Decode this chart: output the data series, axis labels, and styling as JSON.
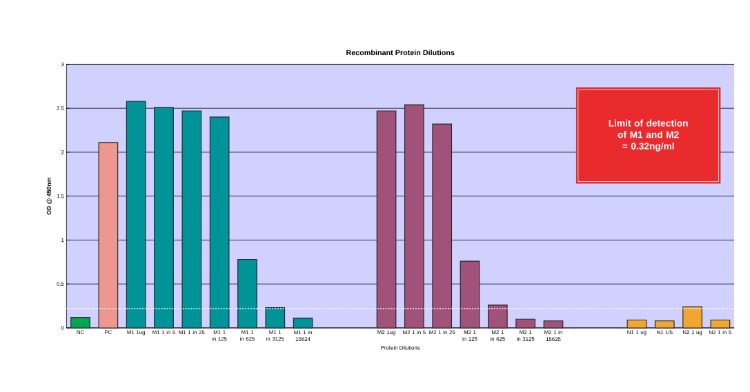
{
  "chart_data": {
    "type": "bar",
    "title": "Recombinant Protein Dilutions",
    "xlabel": "Protein Dilutions",
    "ylabel": "OD @ 450nm",
    "categories": [
      "NC",
      "PC",
      "M1 1ug",
      "M1 1 in 5",
      "M1 1 in 25",
      "M1 1 in 125",
      "M1 1 in 625",
      "M1 1 in 3125",
      "M1 1 in 15624",
      null,
      null,
      "M2 1ug",
      "M2 1 in 5",
      "M2 1 in 25",
      "M2 1 in 125",
      "M2 1 in 625",
      "M2 1 in 3125",
      "M2 1 in 15625",
      null,
      null,
      "N1 1 ug",
      "N1 1/5",
      "N2 1 ug",
      "N2 1 in 5"
    ],
    "values": [
      0.12,
      2.11,
      2.58,
      2.51,
      2.47,
      2.4,
      0.78,
      0.23,
      0.11,
      null,
      null,
      2.47,
      2.54,
      2.32,
      0.76,
      0.26,
      0.1,
      0.08,
      null,
      null,
      0.09,
      0.08,
      0.24,
      0.09
    ],
    "colors": [
      "#00a651",
      "#ee9790",
      "#009499",
      "#009499",
      "#009499",
      "#009499",
      "#009499",
      "#009499",
      "#009499",
      "#009499",
      "#009499",
      "#a0527a",
      "#a0527a",
      "#a0527a",
      "#a0527a",
      "#a0527a",
      "#a0527a",
      "#a0527a",
      "#a0527a",
      "#a0527a",
      "#f0a630",
      "#f0a630",
      "#f0a630",
      "#f0a630"
    ],
    "ylim": [
      0,
      3
    ],
    "yticks": [
      0,
      0.5,
      1,
      1.5,
      2,
      2.5,
      3
    ],
    "grid": "y",
    "ref_lines": [
      {
        "axis": "y",
        "value": 0.22,
        "color": "#ffffff",
        "line_style": "dotted"
      }
    ],
    "annotations": [
      "Limit of detection of M1 and M2 = 0.32ng/ml"
    ]
  }
}
